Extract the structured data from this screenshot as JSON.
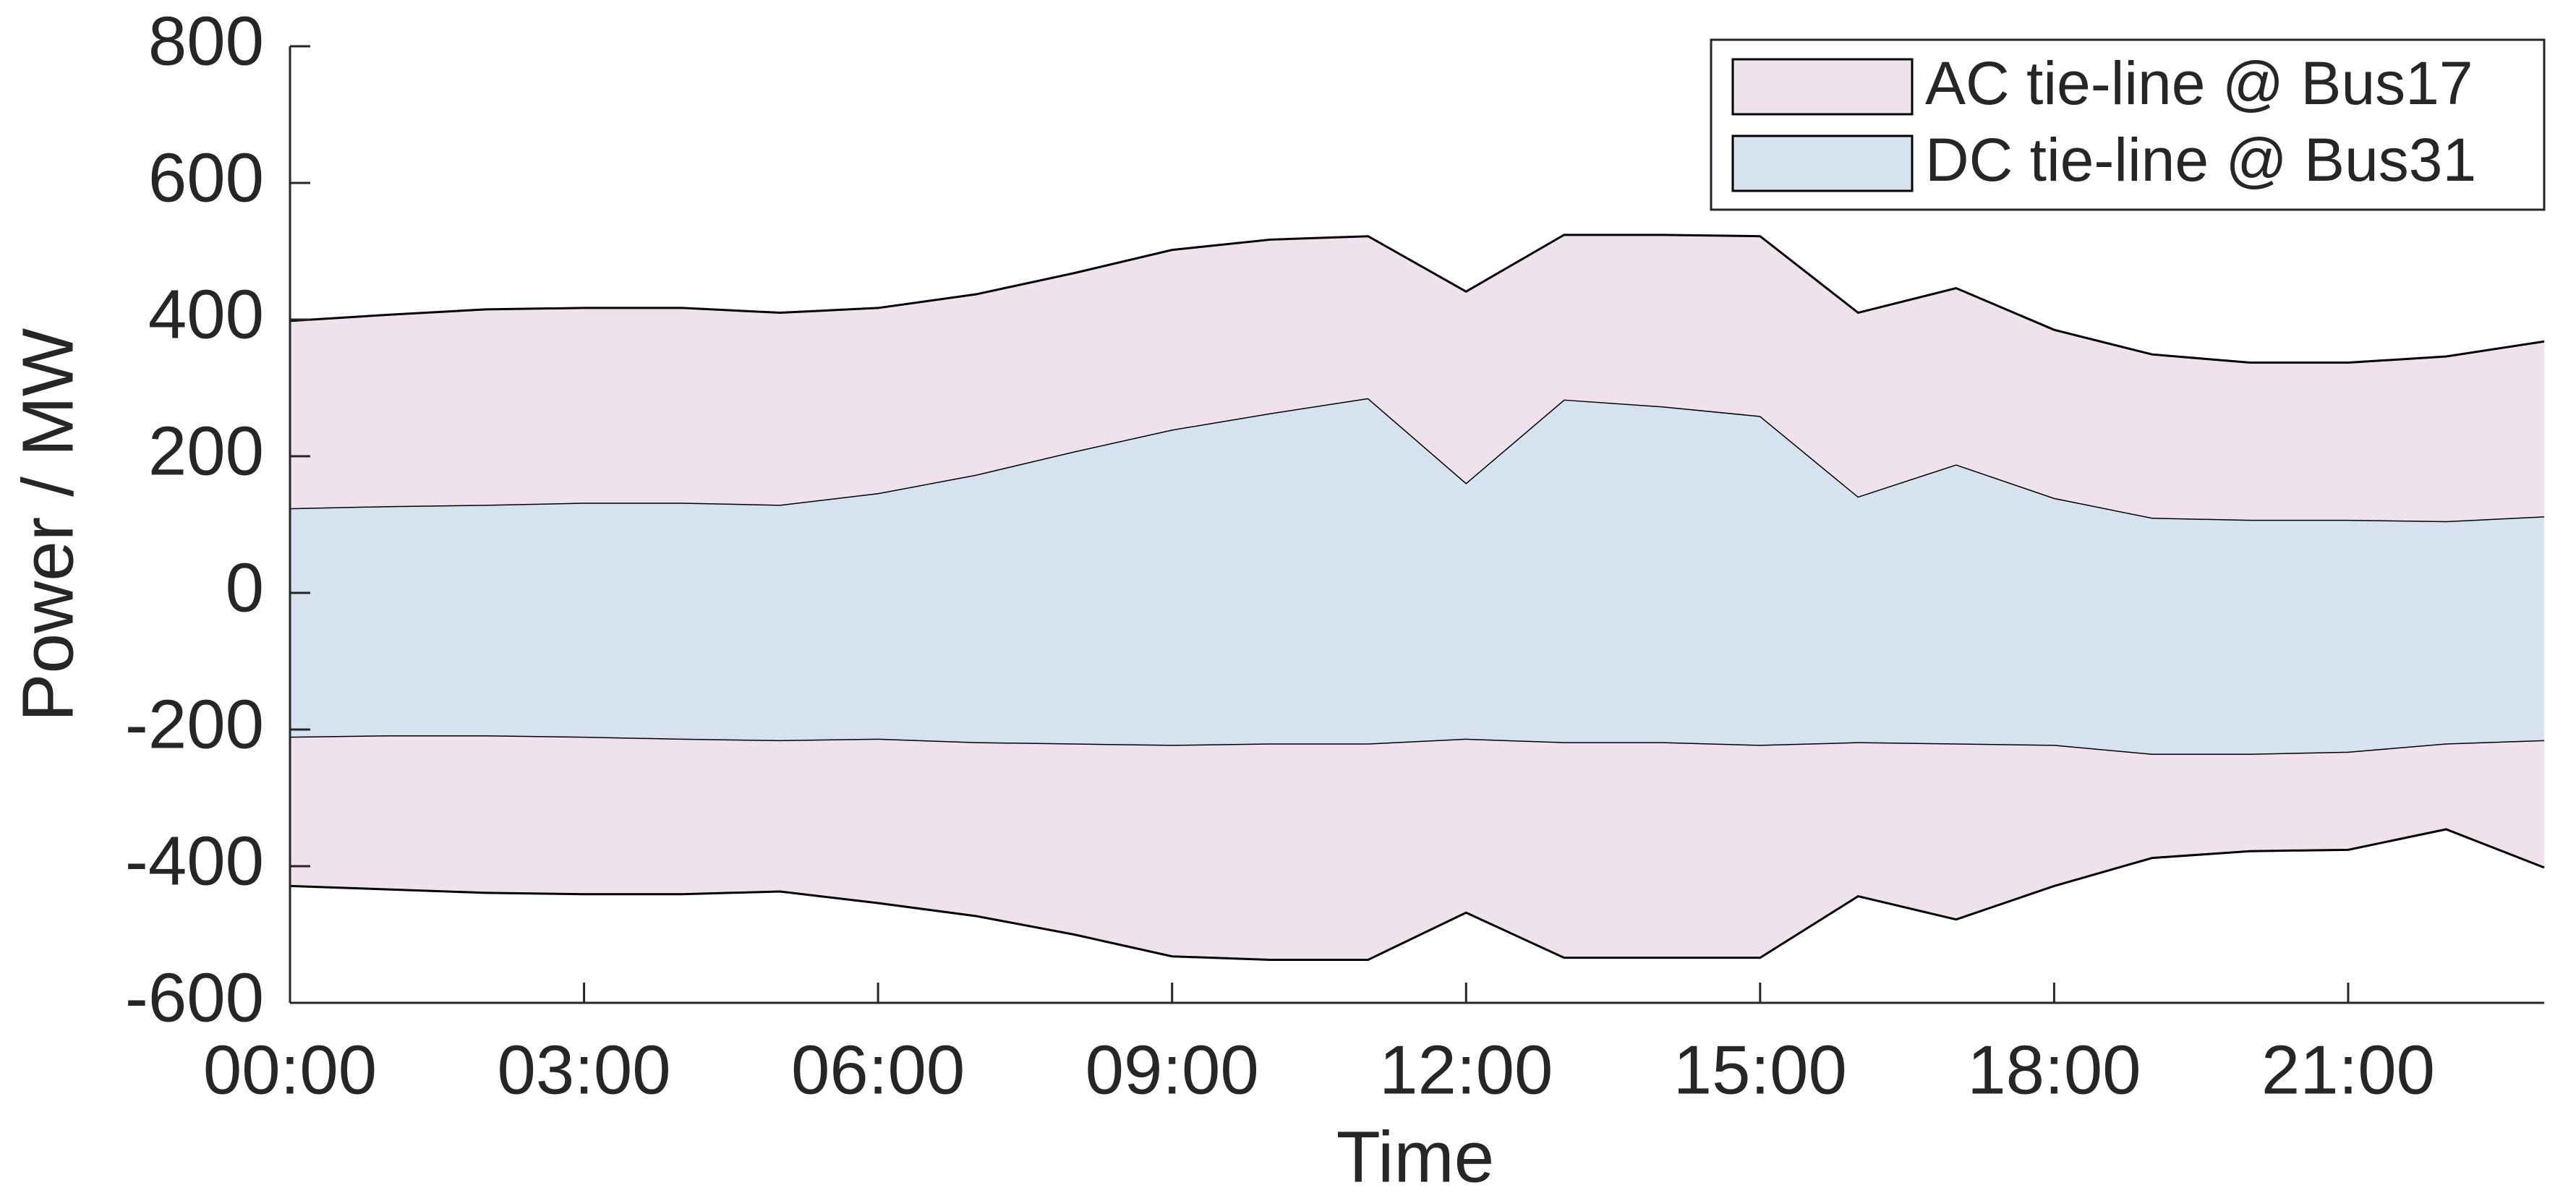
{
  "chart_data": {
    "type": "stacked-area",
    "x_label": "Time",
    "y_label": "Power / MW",
    "categories": [
      "00:00",
      null,
      null,
      "03:00",
      null,
      null,
      "06:00",
      null,
      null,
      "09:00",
      null,
      null,
      "12:00",
      null,
      null,
      "15:00",
      null,
      null,
      "18:00",
      null,
      null,
      "21:00",
      null,
      null
    ],
    "series": [
      {
        "name": "AC tie-line @ Bus17",
        "color": "#f0e2ec",
        "values": [
          274,
          280,
          286,
          285,
          285,
          281,
          271,
          264,
          261,
          263,
          254,
          237,
          280,
          241,
          251,
          263,
          269,
          258,
          246,
          239,
          230,
          230,
          241,
          256
        ],
        "negative_values": [
          -217,
          -224,
          -229,
          -229,
          -226,
          -220,
          -239,
          -253,
          -278,
          -308,
          -315,
          -315,
          -253,
          -314,
          -314,
          -310,
          -224,
          -256,
          -205,
          -151,
          -141,
          -142,
          -124,
          -185
        ]
      },
      {
        "name": "DC tie-line @ Bus31",
        "color": "#d6e2ef",
        "values": [
          124,
          127,
          129,
          132,
          132,
          129,
          146,
          173,
          207,
          239,
          263,
          285,
          161,
          283,
          273,
          259,
          141,
          188,
          139,
          110,
          107,
          107,
          105,
          112
        ],
        "negative_values": [
          -212,
          -210,
          -210,
          -212,
          -215,
          -217,
          -215,
          -220,
          -222,
          -224,
          -222,
          -222,
          -215,
          -220,
          -220,
          -224,
          -220,
          -222,
          -224,
          -237,
          -237,
          -234,
          -222,
          -217
        ]
      }
    ],
    "stack_order": [
      1,
      0
    ],
    "ylim": [
      -600,
      800
    ],
    "yticks": [
      -600,
      -400,
      -200,
      0,
      200,
      400,
      600,
      800
    ],
    "legend": "upper-right",
    "edge_color": "#000000"
  }
}
